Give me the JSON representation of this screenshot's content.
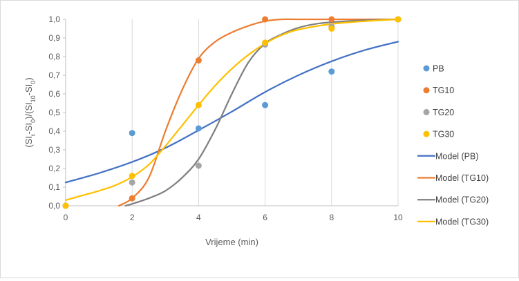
{
  "chart_data": {
    "type": "scatter",
    "title": "",
    "xlabel": "Vrijeme (min)",
    "ylabel": "(SI_t-SI_0)/(SI_10-SI_0)",
    "ylabel_parts": [
      "(SI",
      "t",
      "-SI",
      "0",
      ")/(SI",
      "10",
      "-SI",
      "0",
      ")"
    ],
    "xlim": [
      0,
      10
    ],
    "ylim": [
      0,
      1.0
    ],
    "x_ticks": [
      "0",
      "2",
      "4",
      "6",
      "8",
      "10"
    ],
    "y_ticks": [
      "0,0",
      "0,1",
      "0,2",
      "0,3",
      "0,4",
      "0,5",
      "0,6",
      "0,7",
      "0,8",
      "0,9",
      "1,0"
    ],
    "grid": "vertical",
    "legend_position": "right",
    "series": [
      {
        "name": "PB",
        "kind": "points",
        "color": "#5B9BD5",
        "x": [
          0,
          2,
          4,
          6,
          8,
          10
        ],
        "y": [
          0.0,
          0.39,
          0.415,
          0.54,
          0.72,
          1.0
        ]
      },
      {
        "name": "TG10",
        "kind": "points",
        "color": "#ED7D31",
        "x": [
          0,
          2,
          4,
          6,
          8,
          10
        ],
        "y": [
          0.0,
          0.04,
          0.78,
          1.0,
          1.0,
          1.0
        ]
      },
      {
        "name": "TG20",
        "kind": "points",
        "color": "#A5A5A5",
        "x": [
          0,
          2,
          4,
          6,
          8,
          10
        ],
        "y": [
          0.0,
          0.125,
          0.215,
          0.865,
          0.96,
          1.0
        ]
      },
      {
        "name": "TG30",
        "kind": "points",
        "color": "#FFC000",
        "x": [
          0,
          2,
          4,
          6,
          8,
          10
        ],
        "y": [
          0.0,
          0.16,
          0.54,
          0.875,
          0.95,
          1.0
        ]
      },
      {
        "name": "Model (PB)",
        "kind": "line",
        "color": "#4472C4",
        "x": [
          0,
          1,
          2,
          3,
          4,
          5,
          6,
          7,
          8,
          9,
          10
        ],
        "y": [
          0.125,
          0.175,
          0.235,
          0.31,
          0.405,
          0.505,
          0.61,
          0.7,
          0.775,
          0.835,
          0.88
        ]
      },
      {
        "name": "Model (TG10)",
        "kind": "line",
        "color": "#ED7D31",
        "x": [
          1.6,
          2.0,
          2.5,
          3.0,
          3.5,
          4.0,
          4.5,
          5.0,
          5.5,
          6.0,
          6.5,
          7.0,
          8.0,
          9.0,
          10.0
        ],
        "y": [
          0.0,
          0.04,
          0.15,
          0.4,
          0.62,
          0.79,
          0.88,
          0.93,
          0.965,
          0.99,
          1.0,
          1.0,
          1.0,
          1.0,
          1.0
        ]
      },
      {
        "name": "Model (TG20)",
        "kind": "line",
        "color": "#7F7F7F",
        "x": [
          1.8,
          2.0,
          2.5,
          3.0,
          3.5,
          4.0,
          4.5,
          5.0,
          5.5,
          6.0,
          6.5,
          7.0,
          7.5,
          8.0,
          9.0,
          10.0
        ],
        "y": [
          0.0,
          0.01,
          0.04,
          0.08,
          0.15,
          0.25,
          0.41,
          0.6,
          0.77,
          0.87,
          0.92,
          0.955,
          0.975,
          0.985,
          0.995,
          1.0
        ]
      },
      {
        "name": "Model (TG30)",
        "kind": "line",
        "color": "#FFC000",
        "x": [
          0,
          0.5,
          1.0,
          1.5,
          2.0,
          2.5,
          3.0,
          3.5,
          4.0,
          4.5,
          5.0,
          5.5,
          6.0,
          6.5,
          7.0,
          8.0,
          9.0,
          10.0
        ],
        "y": [
          0.03,
          0.055,
          0.08,
          0.11,
          0.155,
          0.22,
          0.32,
          0.43,
          0.54,
          0.645,
          0.735,
          0.81,
          0.87,
          0.915,
          0.945,
          0.975,
          0.99,
          1.0
        ]
      }
    ]
  }
}
